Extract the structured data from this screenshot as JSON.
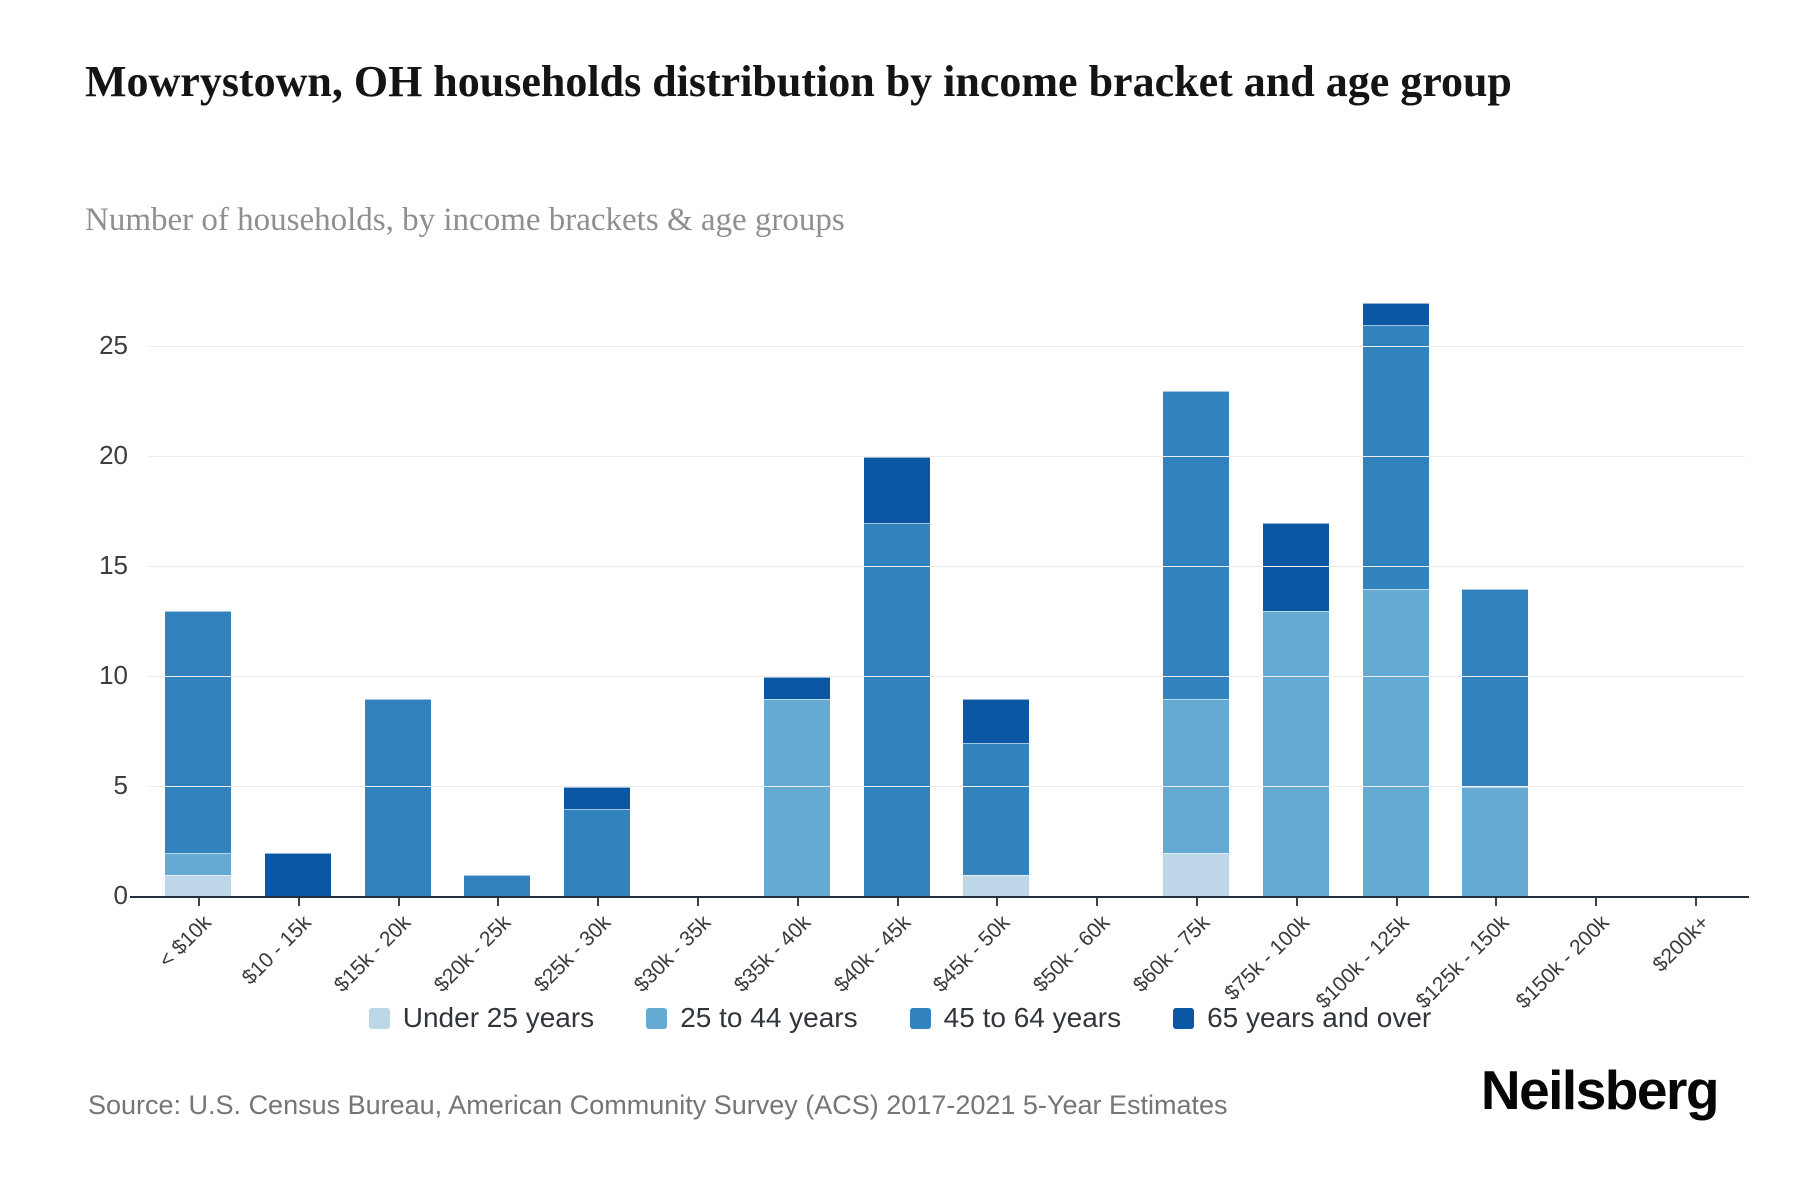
{
  "header": {
    "title": "Mowrystown, OH households distribution by income bracket and age group",
    "subtitle": "Number of households, by income brackets & age groups"
  },
  "chart_data": {
    "type": "bar",
    "stacked": true,
    "title": "Mowrystown, OH households distribution by income bracket and age group",
    "xlabel": "",
    "ylabel": "",
    "categories": [
      "< $10k",
      "$10 - 15k",
      "$15k - 20k",
      "$20k - 25k",
      "$25k - 30k",
      "$30k - 35k",
      "$35k - 40k",
      "$40k - 45k",
      "$45k - 50k",
      "$50k - 60k",
      "$60k - 75k",
      "$75k - 100k",
      "$100k - 125k",
      "$125k - 150k",
      "$150k - 200k",
      "$200k+"
    ],
    "series": [
      {
        "name": "Under 25 years",
        "color": "#bdd7e8",
        "values": [
          1,
          0,
          0,
          0,
          0,
          0,
          0,
          0,
          1,
          0,
          2,
          0,
          0,
          0,
          0,
          0
        ]
      },
      {
        "name": "25 to 44 years",
        "color": "#65aad3",
        "values": [
          1,
          0,
          0,
          0,
          0,
          0,
          9,
          0,
          0,
          0,
          7,
          13,
          14,
          5,
          0,
          0
        ]
      },
      {
        "name": "45 to 64 years",
        "color": "#3182bd",
        "values": [
          11,
          0,
          9,
          1,
          4,
          0,
          0,
          17,
          6,
          0,
          14,
          0,
          12,
          9,
          0,
          0
        ]
      },
      {
        "name": "65 years and over",
        "color": "#0b57a4",
        "values": [
          0,
          2,
          0,
          0,
          1,
          0,
          1,
          3,
          2,
          0,
          0,
          4,
          1,
          0,
          0,
          0
        ]
      }
    ],
    "totals": [
      13,
      2,
      9,
      1,
      5,
      0,
      10,
      20,
      9,
      0,
      23,
      17,
      27,
      14,
      0,
      0
    ],
    "yticks": [
      0,
      5,
      10,
      15,
      20,
      25
    ],
    "ylim": [
      0,
      28.2
    ],
    "grid": "horizontal",
    "legend_position": "bottom"
  },
  "footer": {
    "source_text": "Source: U.S. Census Bureau, American Community Survey (ACS) 2017-2021 5-Year Estimates",
    "logo_text": "Neilsberg"
  }
}
